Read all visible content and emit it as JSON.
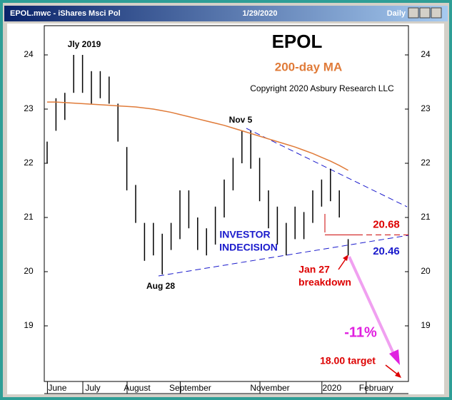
{
  "window": {
    "title": "EPOL.mwc - iShares Msci Pol",
    "date": "1/29/2020",
    "period": "Daily"
  },
  "chart_data": {
    "type": "ohlc",
    "title": "EPOL",
    "copyright": "Copyright 2020 Asbury Research LLC",
    "categories": [
      null,
      "June",
      null,
      null,
      null,
      "July",
      null,
      null,
      null,
      null,
      "August",
      null,
      null,
      null,
      null,
      null,
      "September",
      null,
      null,
      null,
      null,
      null,
      null,
      null,
      null,
      "November",
      null,
      null,
      null,
      null,
      null,
      null,
      "2020",
      null,
      null,
      null,
      null,
      "February",
      null,
      null,
      null
    ],
    "high": [
      22.4,
      23.2,
      23.3,
      24.0,
      24.0,
      23.7,
      23.7,
      23.6,
      23.1,
      22.3,
      21.6,
      20.9,
      20.9,
      20.7,
      20.9,
      21.5,
      21.5,
      21.0,
      20.8,
      21.2,
      21.7,
      22.1,
      22.6,
      22.6,
      22.1,
      21.5,
      21.2,
      20.9,
      21.2,
      21.1,
      21.5,
      21.7,
      21.9,
      21.5,
      20.6,
      null,
      null,
      null,
      null,
      null,
      null
    ],
    "low": [
      22.0,
      22.6,
      22.8,
      23.3,
      23.3,
      23.1,
      23.2,
      23.1,
      22.4,
      21.5,
      20.9,
      20.2,
      20.3,
      19.95,
      20.4,
      20.6,
      20.8,
      20.4,
      20.3,
      20.5,
      21.0,
      21.5,
      22.0,
      21.9,
      21.3,
      20.8,
      20.5,
      20.3,
      20.6,
      20.6,
      20.9,
      21.2,
      21.3,
      21.0,
      20.3,
      null,
      null,
      null,
      null,
      null,
      null
    ],
    "series": [
      {
        "name": "200-day MA",
        "color": "#e07b39",
        "values": [
          23.13,
          23.13,
          23.12,
          23.11,
          23.1,
          23.09,
          23.08,
          23.07,
          23.06,
          23.05,
          23.04,
          23.02,
          23.0,
          22.97,
          22.94,
          22.9,
          22.86,
          22.82,
          22.78,
          22.74,
          22.7,
          22.65,
          22.6,
          22.55,
          22.5,
          22.45,
          22.4,
          22.35,
          22.3,
          22.24,
          22.18,
          22.11,
          22.04,
          21.96,
          21.87,
          null,
          null,
          null,
          null,
          null,
          null
        ]
      }
    ],
    "ylim": [
      18,
      24.5
    ],
    "yticks": [
      19,
      20,
      21,
      22,
      23,
      24
    ],
    "resistance": 20.68,
    "support": 20.46,
    "annotations": {
      "peak": "Jly 2019",
      "nov": "Nov 5",
      "aug": "Aug 28",
      "indecision1": "INVESTOR",
      "indecision2": "INDECISION",
      "jan1": "Jan 27",
      "jan2": "breakdown",
      "drop": "-11%",
      "target": "18.00 target"
    }
  }
}
